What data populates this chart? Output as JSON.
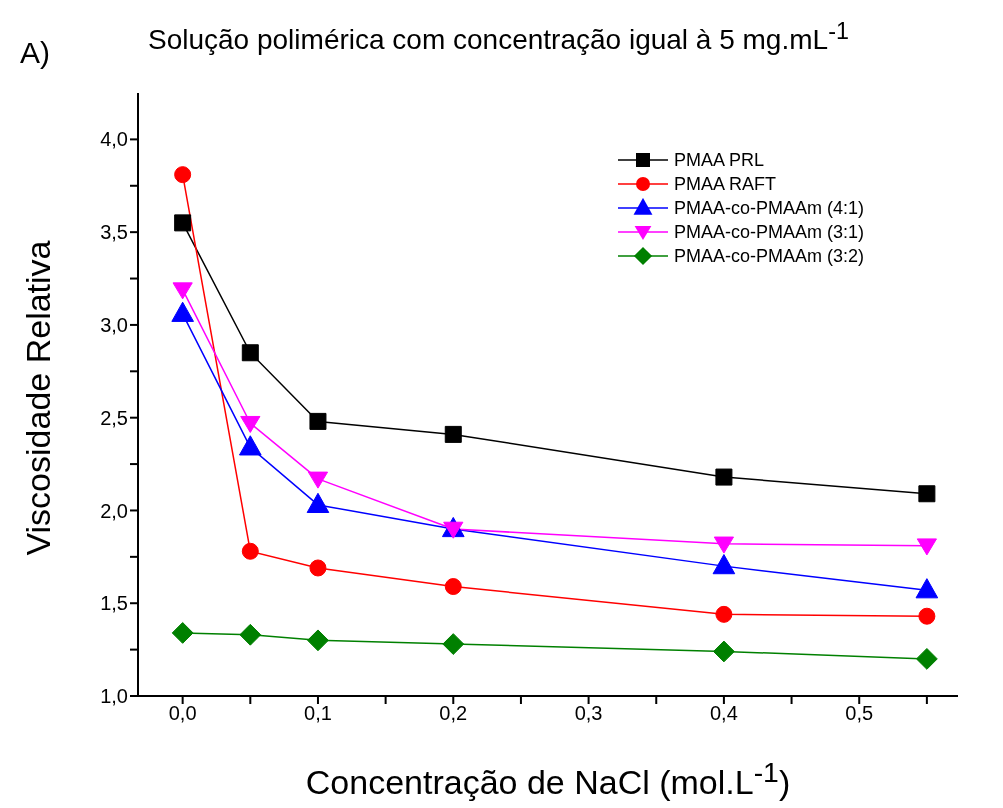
{
  "chart_data": {
    "type": "line",
    "title": "Solução polimérica com concentração igual à 5 mg.mL$^{-1}$",
    "xlabel": "Concentração de NaCl (mol.L$^{-1}$)",
    "ylabel": "Viscosidade Relativa",
    "annotations": [
      "A)"
    ],
    "x": [
      0,
      0.05,
      0.1,
      0.2,
      0.4,
      0.55
    ],
    "series": [
      {
        "name": "PMAA PRL",
        "color": "#000000",
        "marker": "square",
        "values": [
          3.55,
          2.85,
          2.48,
          2.41,
          2.18,
          2.09
        ]
      },
      {
        "name": "PMAA RAFT",
        "color": "#ff0000",
        "marker": "circle",
        "values": [
          3.81,
          1.78,
          1.69,
          1.59,
          1.44,
          1.43
        ]
      },
      {
        "name": "PMAA-co-PMAAm (4:1)",
        "color": "#0000ff",
        "marker": "triangle",
        "values": [
          3.06,
          2.34,
          2.03,
          1.9,
          1.7,
          1.57
        ]
      },
      {
        "name": "PMAA-co-PMAAm (3:1)",
        "color": "#ff00ff",
        "marker": "triangle-down",
        "values": [
          3.19,
          2.47,
          2.17,
          1.9,
          1.82,
          1.81
        ]
      },
      {
        "name": "PMAA-co-PMAAm (3:2)",
        "color": "#008000",
        "marker": "diamond",
        "values": [
          1.34,
          1.33,
          1.3,
          1.28,
          1.24,
          1.2
        ]
      }
    ],
    "xlim": [
      -0.033,
      0.573
    ],
    "xticks": [
      {
        "value": 0,
        "label": "0,0"
      },
      {
        "value": 0.05,
        "label": null
      },
      {
        "value": 0.1,
        "label": "0,1"
      },
      {
        "value": 0.15,
        "label": null
      },
      {
        "value": 0.2,
        "label": "0,2"
      },
      {
        "value": 0.25,
        "label": null
      },
      {
        "value": 0.3,
        "label": "0,3"
      },
      {
        "value": 0.35,
        "label": null
      },
      {
        "value": 0.4,
        "label": "0,4"
      },
      {
        "value": 0.45,
        "label": null
      },
      {
        "value": 0.5,
        "label": "0,5"
      },
      {
        "value": 0.55,
        "label": null
      }
    ],
    "ylim": [
      1.0,
      4.25
    ],
    "yticks": [
      {
        "value": 1,
        "label": "1,0"
      },
      {
        "value": 1.25,
        "label": null
      },
      {
        "value": 1.5,
        "label": "1,5"
      },
      {
        "value": 1.75,
        "label": null
      },
      {
        "value": 2,
        "label": "2,0"
      },
      {
        "value": 2.25,
        "label": null
      },
      {
        "value": 2.5,
        "label": "2,5"
      },
      {
        "value": 2.75,
        "label": null
      },
      {
        "value": 3,
        "label": "3,0"
      },
      {
        "value": 3.25,
        "label": null
      },
      {
        "value": 3.5,
        "label": "3,5"
      },
      {
        "value": 3.75,
        "label": null
      },
      {
        "value": 4,
        "label": "4,0"
      }
    ],
    "grid": false,
    "legend": "top right",
    "line_style": "solid"
  }
}
